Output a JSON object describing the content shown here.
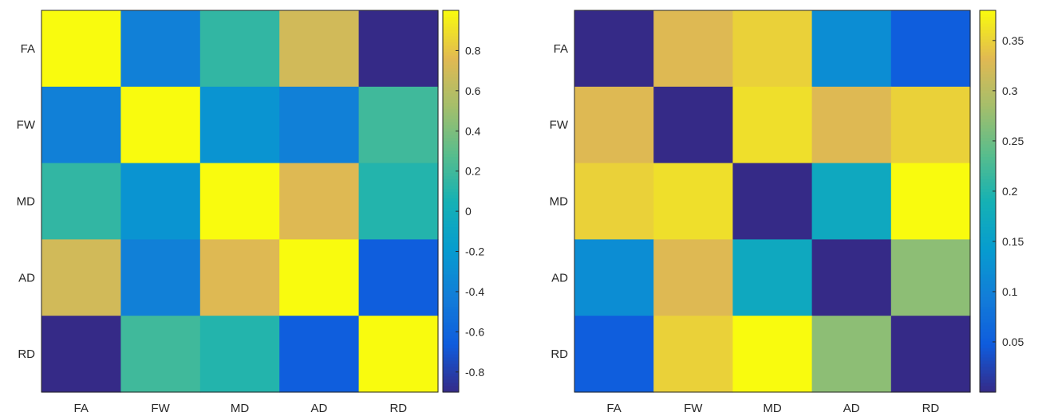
{
  "chart_data": [
    {
      "type": "heatmap",
      "title": "",
      "xlabel": "",
      "ylabel": "",
      "x_categories": [
        "FA",
        "FW",
        "MD",
        "AD",
        "RD"
      ],
      "y_categories": [
        "FA",
        "FW",
        "MD",
        "AD",
        "RD"
      ],
      "values": [
        [
          1.0,
          -0.4,
          0.15,
          0.7,
          -0.9
        ],
        [
          -0.4,
          1.0,
          -0.25,
          -0.4,
          0.2
        ],
        [
          0.15,
          -0.25,
          1.0,
          0.75,
          0.1
        ],
        [
          0.7,
          -0.4,
          0.75,
          1.0,
          -0.65
        ],
        [
          -0.9,
          0.2,
          0.1,
          -0.65,
          1.0
        ]
      ],
      "colorbar": {
        "range": [
          -0.9,
          1.0
        ],
        "ticks": [
          -0.8,
          -0.6,
          -0.4,
          -0.2,
          0,
          0.2,
          0.4,
          0.6,
          0.8
        ],
        "tick_labels": [
          "-0.8",
          "-0.6",
          "-0.4",
          "-0.2",
          "0",
          "0.2",
          "0.4",
          "0.6",
          "0.8"
        ]
      },
      "colormap": "parula",
      "grid": false
    },
    {
      "type": "heatmap",
      "title": "",
      "xlabel": "",
      "ylabel": "",
      "x_categories": [
        "FA",
        "FW",
        "MD",
        "AD",
        "RD"
      ],
      "y_categories": [
        "FA",
        "FW",
        "MD",
        "AD",
        "RD"
      ],
      "values": [
        [
          0.0,
          0.33,
          0.35,
          0.12,
          0.05
        ],
        [
          0.33,
          0.0,
          0.36,
          0.33,
          0.35
        ],
        [
          0.35,
          0.36,
          0.0,
          0.17,
          0.38
        ],
        [
          0.12,
          0.33,
          0.17,
          0.0,
          0.27
        ],
        [
          0.05,
          0.35,
          0.38,
          0.27,
          0.0
        ]
      ],
      "colorbar": {
        "range": [
          0.0,
          0.38
        ],
        "ticks": [
          0.05,
          0.1,
          0.15,
          0.2,
          0.25,
          0.3,
          0.35
        ],
        "tick_labels": [
          "0.05",
          "0.1",
          "0.15",
          "0.2",
          "0.25",
          "0.3",
          "0.35"
        ]
      },
      "colormap": "parula",
      "grid": false
    }
  ]
}
